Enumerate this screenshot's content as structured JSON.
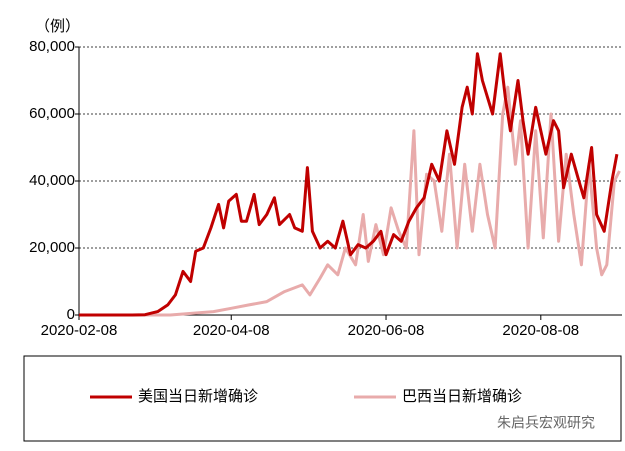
{
  "chart_data": {
    "type": "line",
    "y_label": "（例）",
    "xlim": [
      "2020-02-08",
      "2020-09-09"
    ],
    "xticks": [
      "2020-02-08",
      "2020-04-08",
      "2020-06-08",
      "2020-08-08"
    ],
    "ylim": [
      0,
      80000
    ],
    "yticks": [
      0,
      {
        "value": 20000,
        "label": "20,000"
      },
      {
        "value": 40000,
        "label": "40,000"
      },
      {
        "value": 60000,
        "label": "60,000"
      },
      {
        "value": 80000,
        "label": "80,000"
      }
    ],
    "grid": true,
    "legend": "bottom",
    "watermark": "朱启兵宏观研究",
    "series": [
      {
        "name": "美国当日新增确诊",
        "color": "#c00000",
        "x": [
          "2020-02-08",
          "2020-02-29",
          "2020-03-05",
          "2020-03-10",
          "2020-03-14",
          "2020-03-17",
          "2020-03-20",
          "2020-03-23",
          "2020-03-25",
          "2020-03-28",
          "2020-03-31",
          "2020-04-03",
          "2020-04-05",
          "2020-04-07",
          "2020-04-10",
          "2020-04-12",
          "2020-04-14",
          "2020-04-17",
          "2020-04-19",
          "2020-04-22",
          "2020-04-25",
          "2020-04-27",
          "2020-05-01",
          "2020-05-03",
          "2020-05-06",
          "2020-05-08",
          "2020-05-10",
          "2020-05-13",
          "2020-05-16",
          "2020-05-19",
          "2020-05-22",
          "2020-05-25",
          "2020-05-28",
          "2020-05-31",
          "2020-06-03",
          "2020-06-06",
          "2020-06-08",
          "2020-06-11",
          "2020-06-14",
          "2020-06-17",
          "2020-06-20",
          "2020-06-23",
          "2020-06-26",
          "2020-06-29",
          "2020-07-02",
          "2020-07-05",
          "2020-07-08",
          "2020-07-10",
          "2020-07-12",
          "2020-07-14",
          "2020-07-16",
          "2020-07-18",
          "2020-07-20",
          "2020-07-23",
          "2020-07-25",
          "2020-07-27",
          "2020-07-30",
          "2020-08-01",
          "2020-08-03",
          "2020-08-06",
          "2020-08-08",
          "2020-08-10",
          "2020-08-13",
          "2020-08-15",
          "2020-08-17",
          "2020-08-20",
          "2020-08-23",
          "2020-08-25",
          "2020-08-28",
          "2020-08-30",
          "2020-09-02",
          "2020-09-05",
          "2020-09-07"
        ],
        "values": [
          0,
          0,
          100,
          1000,
          3000,
          6000,
          13000,
          10000,
          19000,
          20000,
          26000,
          33000,
          26000,
          34000,
          36000,
          28000,
          28000,
          36000,
          27000,
          30000,
          35000,
          27000,
          30000,
          26000,
          25000,
          44000,
          25000,
          20000,
          22000,
          20000,
          28000,
          18000,
          21000,
          20000,
          22000,
          25000,
          18000,
          24000,
          22000,
          28000,
          32000,
          35000,
          45000,
          40000,
          55000,
          45000,
          62000,
          68000,
          60000,
          78000,
          70000,
          65000,
          60000,
          78000,
          65000,
          55000,
          70000,
          58000,
          48000,
          62000,
          55000,
          48000,
          58000,
          55000,
          38000,
          48000,
          40000,
          35000,
          50000,
          30000,
          25000,
          40000,
          48000
        ]
      },
      {
        "name": "巴西当日新增确诊",
        "color": "#e8abab",
        "x": [
          "2020-02-08",
          "2020-03-15",
          "2020-04-01",
          "2020-04-08",
          "2020-04-15",
          "2020-04-22",
          "2020-04-29",
          "2020-05-06",
          "2020-05-09",
          "2020-05-13",
          "2020-05-16",
          "2020-05-20",
          "2020-05-23",
          "2020-05-27",
          "2020-05-30",
          "2020-06-01",
          "2020-06-04",
          "2020-06-07",
          "2020-06-10",
          "2020-06-13",
          "2020-06-16",
          "2020-06-19",
          "2020-06-21",
          "2020-06-24",
          "2020-06-27",
          "2020-06-30",
          "2020-07-03",
          "2020-07-06",
          "2020-07-09",
          "2020-07-12",
          "2020-07-15",
          "2020-07-18",
          "2020-07-21",
          "2020-07-24",
          "2020-07-26",
          "2020-07-29",
          "2020-07-31",
          "2020-08-03",
          "2020-08-06",
          "2020-08-09",
          "2020-08-12",
          "2020-08-15",
          "2020-08-18",
          "2020-08-21",
          "2020-08-24",
          "2020-08-27",
          "2020-08-30",
          "2020-09-01",
          "2020-09-03",
          "2020-09-06",
          "2020-09-08"
        ],
        "values": [
          0,
          0,
          1000,
          2000,
          3000,
          4000,
          7000,
          9000,
          6000,
          11000,
          15000,
          12000,
          20000,
          15000,
          30000,
          16000,
          27000,
          18000,
          32000,
          25000,
          20000,
          55000,
          18000,
          42000,
          40000,
          25000,
          48000,
          20000,
          45000,
          25000,
          45000,
          30000,
          20000,
          60000,
          68000,
          45000,
          58000,
          20000,
          55000,
          23000,
          60000,
          22000,
          48000,
          30000,
          15000,
          45000,
          20000,
          12000,
          15000,
          40000,
          43000
        ]
      }
    ]
  }
}
